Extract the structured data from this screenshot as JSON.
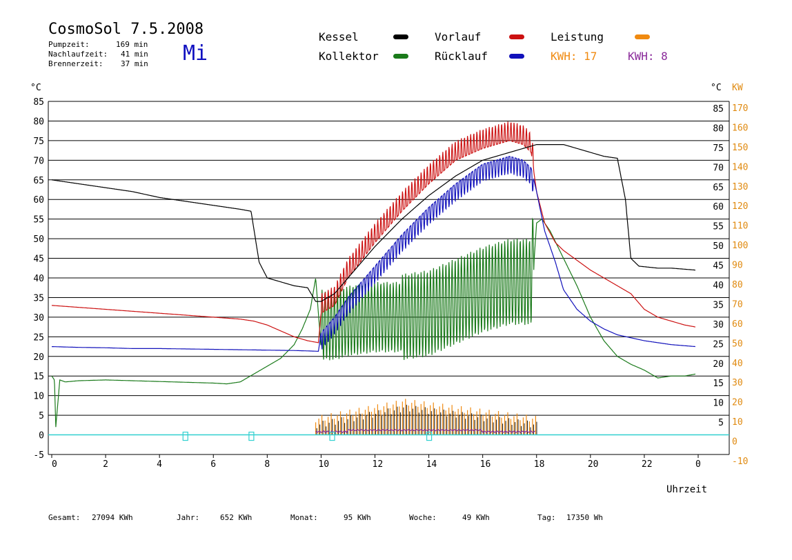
{
  "header": {
    "title": "CosmoSol 7.5.2008",
    "weekday": "Mi",
    "stats": [
      {
        "label": "Pumpzeit:",
        "value": "169 min"
      },
      {
        "label": "Nachlaufzeit:",
        "value": "41 min"
      },
      {
        "label": "Brennerzeit:",
        "value": "37 min"
      }
    ]
  },
  "legend": {
    "kessel": "Kessel",
    "kollektor": "Kollektor",
    "vorlauf": "Vorlauf",
    "ruecklauf": "Rücklauf",
    "leistung": "Leistung",
    "kwh_orange": "KWH: 17",
    "kwh_purple": "KWH: 8"
  },
  "colors": {
    "kessel": "#000000",
    "kollektor": "#1a7a1a",
    "vorlauf": "#cc1111",
    "ruecklauf": "#1111bb",
    "leistung": "#f08a10",
    "kwh_purple": "#8a2a9a",
    "pump": "#30d0d0",
    "grid": "#000000"
  },
  "footer": {
    "gesamt_label": "Gesamt:",
    "gesamt": "27094 KWh",
    "jahr_label": "Jahr:",
    "jahr": "652 KWh",
    "monat_label": "Monat:",
    "monat": "95 KWh",
    "woche_label": "Woche:",
    "woche": "49 KWh",
    "tag_label": "Tag:",
    "tag": "17350 Wh"
  },
  "chart_data": {
    "type": "line",
    "xlabel": "Uhrzeit",
    "ylabel_left": "°C",
    "ylabel_right_c": "°C",
    "ylabel_right_kw": "KW",
    "xlim": [
      0,
      24
    ],
    "ylim": [
      -5,
      85
    ],
    "kw_lim": [
      -10,
      170
    ],
    "x_ticks": [
      "0",
      "2",
      "4",
      "6",
      "8",
      "10",
      "12",
      "14",
      "16",
      "18",
      "20",
      "22",
      "0"
    ],
    "y_ticks_left": [
      "85",
      "80",
      "75",
      "70",
      "65",
      "60",
      "55",
      "50",
      "45",
      "40",
      "35",
      "30",
      "25",
      "20",
      "15",
      "10",
      "5",
      "0",
      "-5"
    ],
    "y_ticks_right": [
      "85",
      "80",
      "75",
      "70",
      "65",
      "60",
      "55",
      "50",
      "45",
      "40",
      "35",
      "30",
      "25",
      "20",
      "15",
      "10",
      "5"
    ],
    "kw_ticks": [
      "170",
      "160",
      "150",
      "140",
      "130",
      "120",
      "110",
      "100",
      "90",
      "80",
      "70",
      "60",
      "50",
      "40",
      "30",
      "20",
      "10",
      "0",
      "-10"
    ],
    "grid": true,
    "series": [
      {
        "name": "Kessel",
        "x": [
          0,
          1,
          2,
          3,
          4,
          5,
          6,
          7,
          7.4,
          7.7,
          8,
          8.5,
          9,
          9.5,
          9.8,
          10,
          10.5,
          11,
          12,
          13,
          14,
          15,
          16,
          17,
          17.5,
          18,
          19,
          20,
          20.5,
          21,
          21.3,
          21.5,
          21.8,
          22.5,
          23,
          23.9
        ],
        "y": [
          65,
          64,
          63,
          62,
          60.5,
          59.5,
          58.5,
          57.5,
          57,
          44,
          40,
          39,
          38,
          37.5,
          34,
          34,
          36,
          40,
          48,
          55,
          61,
          66,
          70,
          72,
          73,
          74,
          74,
          72,
          71,
          70.5,
          60,
          45,
          43,
          42.5,
          42.5,
          42
        ]
      },
      {
        "name": "Kollektor",
        "x": [
          0,
          0.1,
          0.15,
          0.3,
          0.5,
          1,
          2,
          3,
          4,
          5,
          6,
          6.5,
          7,
          7.5,
          8,
          8.5,
          9,
          9.3,
          9.6,
          9.8,
          10,
          10.5,
          11,
          12,
          13,
          14,
          15,
          16,
          17,
          17.8,
          18,
          18.2,
          18.5,
          19,
          19.5,
          20,
          20.5,
          21,
          21.5,
          22,
          22.5,
          23,
          23.5,
          23.9
        ],
        "y": [
          15,
          14,
          2,
          14,
          13.5,
          13.8,
          14,
          13.8,
          13.6,
          13.4,
          13.2,
          13,
          13.5,
          15.5,
          17.5,
          19.5,
          23,
          27,
          32,
          40,
          22,
          22,
          23,
          24,
          24,
          25,
          28,
          31,
          33,
          33,
          54,
          55,
          52,
          45,
          38,
          30,
          24,
          20,
          18,
          16.5,
          14.5,
          15,
          15,
          15.5
        ]
      },
      {
        "name": "Vorlauf",
        "x": [
          0,
          1,
          2,
          3,
          4,
          5,
          6,
          7,
          7.5,
          8,
          8.5,
          9,
          9.5,
          9.9,
          10,
          10.5,
          11,
          12,
          13,
          14,
          15,
          16,
          17,
          17.5,
          17.8,
          18,
          18.3,
          18.7,
          19,
          20,
          21,
          21.5,
          22,
          22.5,
          23,
          23.5,
          23.9
        ],
        "y": [
          33,
          32.5,
          32,
          31.5,
          31,
          30.5,
          30,
          29.5,
          29,
          28,
          26.5,
          25,
          24,
          23.5,
          31,
          33,
          40,
          49,
          57,
          64,
          70,
          73,
          75,
          74,
          72,
          62,
          54,
          49,
          47,
          42,
          38,
          36,
          32,
          30,
          29,
          28,
          27.5
        ]
      },
      {
        "name": "Rücklauf",
        "x": [
          0,
          1,
          2,
          3,
          4,
          5,
          6,
          7,
          8,
          9,
          9.5,
          9.9,
          10,
          10.5,
          11,
          12,
          13,
          14,
          15,
          16,
          17,
          17.5,
          17.8,
          18,
          18.3,
          18.7,
          19,
          19.5,
          20,
          20.5,
          21,
          22,
          23,
          23.9
        ],
        "y": [
          22.5,
          22.3,
          22.2,
          22,
          22,
          21.9,
          21.8,
          21.7,
          21.6,
          21.5,
          21.4,
          21.3,
          26,
          30,
          35,
          43,
          51,
          58,
          64,
          69,
          71,
          70,
          68,
          62,
          52,
          44,
          37,
          32,
          29,
          27,
          25.5,
          24,
          23,
          22.5
        ]
      }
    ]
  }
}
